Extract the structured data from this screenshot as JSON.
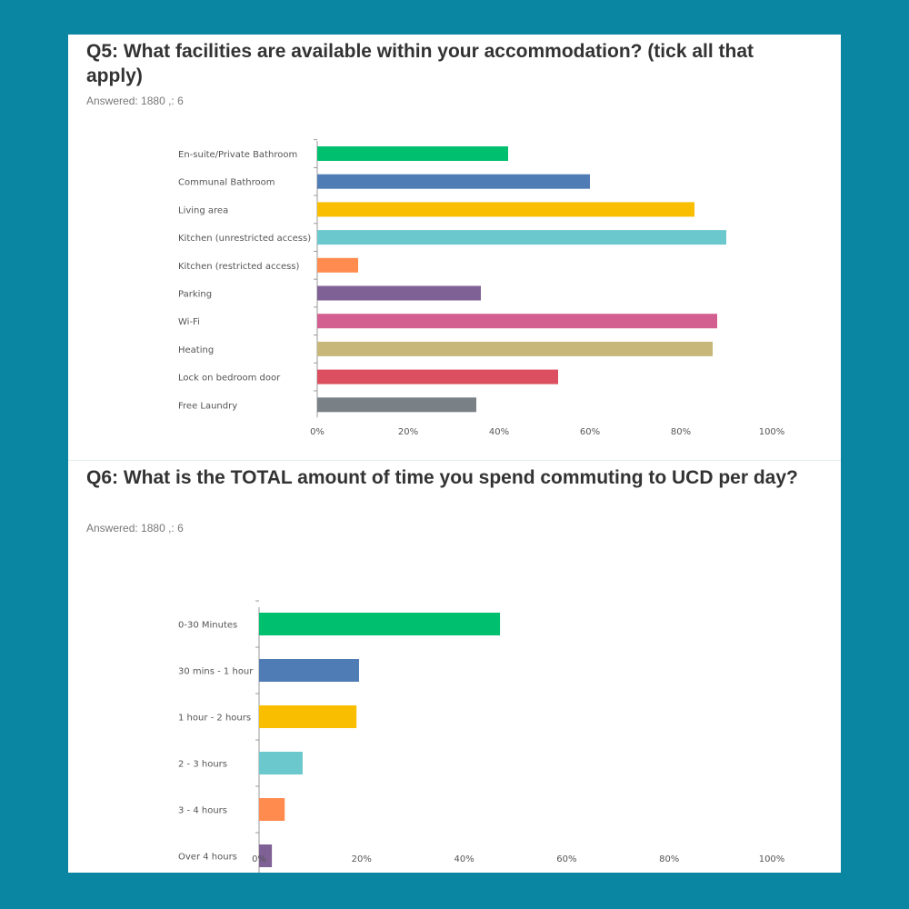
{
  "q5": {
    "title": "Q5: What facilities are available within your accommodation? (tick all that apply)",
    "answered_label": "Answered:",
    "answered_value": "1880",
    "skipped_label": ",: 6"
  },
  "q6": {
    "title": "Q6: What is the TOTAL amount of time you spend commuting to UCD per day?",
    "answered_label": "Answered:",
    "answered_value": "1880",
    "skipped_label": ",: 6"
  },
  "chart_data": [
    {
      "type": "bar",
      "orientation": "horizontal",
      "title": "Q5: What facilities are available within your accommodation? (tick all that apply)",
      "categories": [
        "En-suite/Private Bathroom",
        "Communal Bathroom",
        "Living area",
        "Kitchen (unrestricted access)",
        "Kitchen (restricted access)",
        "Parking",
        "Wi-Fi",
        "Heating",
        "Lock on bedroom door",
        "Free Laundry"
      ],
      "values": [
        42,
        60,
        83,
        90,
        9,
        36,
        88,
        87,
        53,
        35
      ],
      "colors": [
        "#00bf6f",
        "#507cb6",
        "#f9be00",
        "#6bc8cd",
        "#ff8b4f",
        "#7f6196",
        "#d25f90",
        "#c7b879",
        "#db4f60",
        "#798086"
      ],
      "xlim": [
        0,
        100
      ],
      "xticks": [
        "0%",
        "20%",
        "40%",
        "60%",
        "80%",
        "100%"
      ],
      "xlabel": "",
      "ylabel": ""
    },
    {
      "type": "bar",
      "orientation": "horizontal",
      "title": "Q6: What is the TOTAL amount of time you spend commuting to UCD per day?",
      "categories": [
        "0-30 Minutes",
        "30 mins - 1 hour",
        "1 hour - 2 hours",
        "2 - 3 hours",
        "3 - 4 hours",
        "Over 4 hours"
      ],
      "values": [
        47,
        19.5,
        19,
        8.5,
        5,
        2.5
      ],
      "colors": [
        "#00bf6f",
        "#507cb6",
        "#f9be00",
        "#6bc8cd",
        "#ff8b4f",
        "#7f6196"
      ],
      "xlim": [
        0,
        100
      ],
      "xticks": [
        "0%",
        "20%",
        "40%",
        "60%",
        "80%",
        "100%"
      ],
      "xlabel": "",
      "ylabel": ""
    }
  ]
}
